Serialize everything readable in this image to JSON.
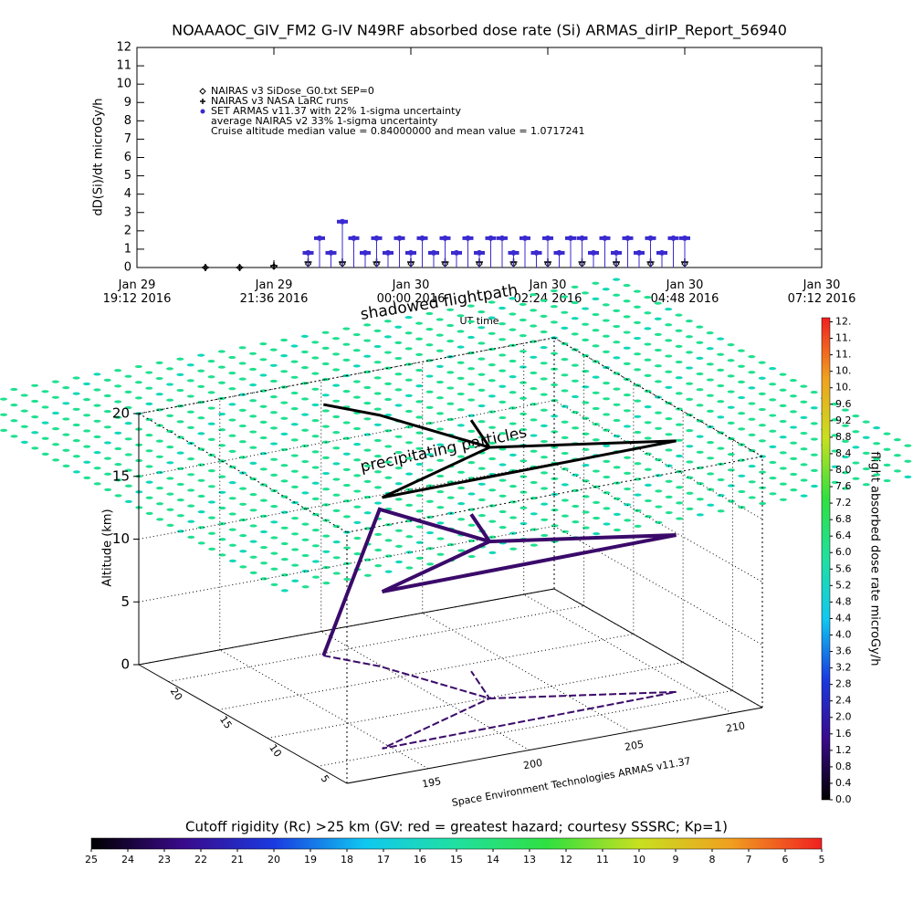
{
  "chart_data": [
    {
      "type": "scatter",
      "title": "NOAAAOC_GIV_FM2 G-IV   N49RF  absorbed dose rate (Si) ARMAS_dirIP_Report_56940",
      "ylabel": "dD(Si)/dt microGy/h",
      "xlabel": "UT time",
      "xlim": [
        19.2,
        31.2
      ],
      "xticks": [
        {
          "value": 19.2,
          "label": "Jan 29\n19:12 2016"
        },
        {
          "value": 21.6,
          "label": "Jan 29\n21:36 2016"
        },
        {
          "value": 24,
          "label": "Jan 30\n00:00 2016"
        },
        {
          "value": 26.4,
          "label": "Jan 30\n02:24 2016"
        },
        {
          "value": 28.8,
          "label": "Jan 30\n04:48 2016"
        },
        {
          "value": 31.2,
          "label": "Jan 30\n07:12 2016"
        }
      ],
      "ylim": [
        0,
        12
      ],
      "yticks": [
        0,
        1,
        2,
        3,
        4,
        5,
        6,
        7,
        8,
        9,
        10,
        11,
        12
      ],
      "series": [
        {
          "name": "NAIRAS v3 SiDose_G0.txt SEP=0",
          "color": "#000000",
          "marker": "diamond",
          "x": [
            20.4,
            21.0,
            21.6,
            22.2,
            22.8,
            23.4,
            24.0,
            24.6,
            25.2,
            25.8,
            26.4,
            27.0,
            27.6,
            28.2,
            28.8
          ],
          "values": [
            0,
            0,
            0.05,
            0.2,
            0.2,
            0.2,
            0.2,
            0.2,
            0.2,
            0.2,
            0.2,
            0.2,
            0.2,
            0.2,
            0.2
          ]
        },
        {
          "name": "NAIRAS v3 NASA LaRC runs",
          "color": "#000000",
          "marker": "plus",
          "x": [
            20.4,
            21.0,
            21.6,
            22.2,
            22.8,
            23.4,
            24.0,
            24.6,
            25.2,
            25.8,
            26.4,
            27.0,
            27.6,
            28.2,
            28.8
          ],
          "values": [
            0,
            0,
            0.1,
            0.3,
            0.3,
            0.3,
            0.3,
            0.3,
            0.3,
            0.3,
            0.3,
            0.3,
            0.3,
            0.3,
            0.3
          ]
        },
        {
          "name": "SET ARMAS v11.37 with 22% 1-sigma uncertainty",
          "color": "#3a2ad0",
          "marker": "circle",
          "x": [
            22.2,
            22.4,
            22.6,
            22.8,
            23.0,
            23.2,
            23.4,
            23.6,
            23.8,
            24.0,
            24.2,
            24.4,
            24.6,
            24.8,
            25.0,
            25.2,
            25.4,
            25.6,
            25.8,
            26.0,
            26.2,
            26.4,
            26.6,
            26.8,
            27.0,
            27.2,
            27.4,
            27.6,
            27.8,
            28.0,
            28.2,
            28.4,
            28.6,
            28.8
          ],
          "values": [
            0.8,
            1.6,
            0.8,
            2.5,
            1.6,
            0.8,
            1.6,
            0.8,
            1.6,
            0.8,
            1.6,
            0.8,
            1.6,
            0.8,
            1.6,
            0.8,
            1.6,
            1.6,
            0.8,
            1.6,
            0.8,
            1.6,
            0.8,
            1.6,
            1.6,
            0.8,
            1.6,
            0.8,
            1.6,
            0.8,
            1.6,
            0.8,
            1.6,
            1.6
          ]
        }
      ],
      "annotations": [
        "average NAIRAS v2 33% 1-sigma uncertainty",
        "Cruise altitude median value = 0.84000000 and mean value = 1.0717241"
      ]
    },
    {
      "type": "path3d",
      "zlabel": "Altitude (km)",
      "xlim": [
        191,
        211.5
      ],
      "xticks": [
        195,
        200,
        205,
        210
      ],
      "ylim": [
        2,
        23
      ],
      "yticks": [
        5,
        10,
        15,
        20
      ],
      "zlim": [
        0,
        20
      ],
      "zticks": [
        0,
        5,
        10,
        15,
        20
      ],
      "series": [
        {
          "color": "#3a0a6a",
          "x": [
            198.5,
            199.9,
            201.9,
            209.3,
            194.6,
            201.9,
            203.0
          ],
          "y": [
            19.7,
            16.9,
            9.9,
            6.2,
            5.8,
            9.9,
            14.0
          ],
          "z": [
            0,
            12.5,
            12.5,
            12.5,
            12.5,
            12.5,
            12.5
          ]
        }
      ],
      "annotations": [
        "shadowed flightpath",
        "precipitating particles",
        "Space Environment Technologies ARMAS v11.37"
      ]
    },
    {
      "type": "colorbar",
      "orientation": "vertical",
      "label": "flight absorbed dose rate microGy/h",
      "lim": [
        0,
        11.7
      ],
      "colors": [
        "#000000",
        "#3a0a8a",
        "#1a3ae0",
        "#10c8f0",
        "#20e0a0",
        "#30e040",
        "#c8e020",
        "#f0a020",
        "#f02020"
      ],
      "ticks": [
        {
          "value": 0,
          "label": "0.0"
        },
        0.4,
        0.8,
        1.2,
        1.6,
        {
          "value": 2,
          "label": "2.0"
        },
        2.4,
        2.8,
        3.2,
        3.6,
        {
          "value": 4,
          "label": "4.0"
        },
        4.4,
        4.8,
        5.2,
        5.6,
        {
          "value": 6,
          "label": "6.0"
        },
        6.4,
        6.8,
        7.2,
        7.6,
        {
          "value": 8,
          "label": "8.0"
        },
        8.4,
        8.8,
        9.2,
        9.6,
        {
          "value": 10,
          "label": "10."
        },
        {
          "value": 10.4,
          "label": "10."
        },
        {
          "value": 10.8,
          "label": "11."
        },
        {
          "value": 11.2,
          "label": "11."
        },
        {
          "value": 11.6,
          "label": "12."
        }
      ]
    },
    {
      "type": "colorbar",
      "orientation": "horizontal",
      "label": "Cutoff rigidity (Rc) >25 km (GV: red = greatest hazard; courtesy SSSRC; Kp=1)",
      "lim": [
        25,
        5
      ],
      "colors": [
        "#000000",
        "#3a0a8a",
        "#1a3ae0",
        "#10c8f0",
        "#20e0a0",
        "#30e040",
        "#c8e020",
        "#f0a020",
        "#f02020"
      ],
      "ticks": [
        25,
        24,
        23,
        22,
        21,
        20,
        19,
        18,
        17,
        16,
        15,
        14,
        13,
        12,
        11,
        10,
        9,
        8,
        7,
        6,
        5
      ]
    }
  ]
}
